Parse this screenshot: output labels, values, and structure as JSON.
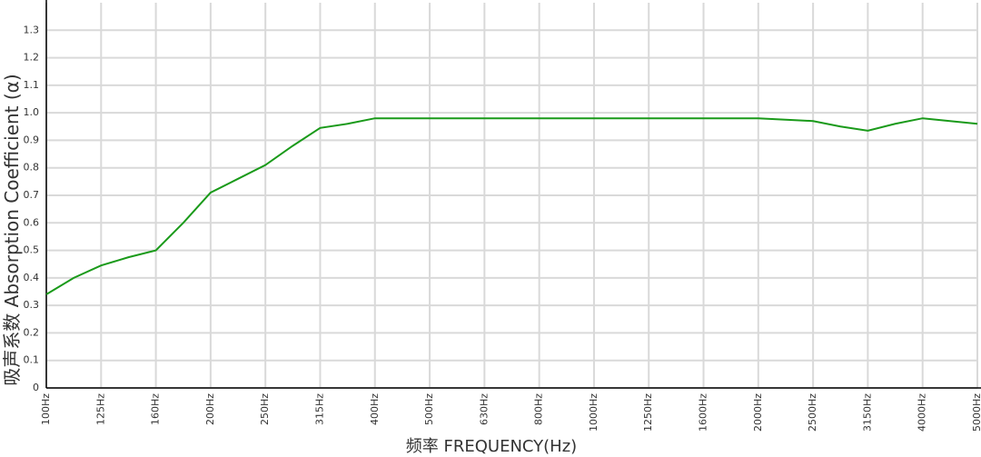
{
  "chart_data": {
    "type": "line",
    "y_label": "吸声系数 Absorption Coefficient (α)",
    "x_label": "频率 FREQUENCY(Hz)",
    "categories": [
      "100Hz",
      null,
      "125Hz",
      null,
      "160Hz",
      null,
      "200Hz",
      null,
      "250Hz",
      null,
      "315Hz",
      null,
      "400Hz",
      null,
      "500Hz",
      null,
      "630Hz",
      null,
      "800Hz",
      null,
      "1000Hz",
      null,
      "1250Hz",
      null,
      "1600Hz",
      null,
      "2000Hz",
      null,
      "2500Hz",
      null,
      "3150Hz",
      null,
      "4000Hz",
      null,
      "5000Hz"
    ],
    "series": [
      {
        "color": "#1a9a1a",
        "values": [
          0.34,
          0.4,
          0.445,
          0.475,
          0.5,
          0.6,
          0.71,
          0.76,
          0.81,
          0.88,
          0.945,
          0.96,
          0.98,
          0.98,
          0.98,
          0.98,
          0.98,
          0.98,
          0.98,
          0.98,
          0.98,
          0.98,
          0.98,
          0.98,
          0.98,
          0.98,
          0.98,
          0.975,
          0.97,
          0.95,
          0.935,
          0.96,
          0.98,
          0.97,
          0.96
        ]
      }
    ],
    "ylim": [
      0,
      1.4
    ],
    "yticks": [
      0,
      0.1,
      0.2,
      0.3,
      0.4,
      0.5,
      0.6,
      0.7,
      0.8,
      0.9,
      {
        "value": 1,
        "label": "1.0"
      },
      1.1,
      1.2,
      1.3
    ],
    "grid": true
  }
}
